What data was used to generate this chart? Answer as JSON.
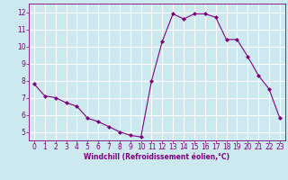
{
  "x": [
    0,
    1,
    2,
    3,
    4,
    5,
    6,
    7,
    8,
    9,
    10,
    11,
    12,
    13,
    14,
    15,
    16,
    17,
    18,
    19,
    20,
    21,
    22,
    23
  ],
  "y": [
    7.8,
    7.1,
    7.0,
    6.7,
    6.5,
    5.8,
    5.6,
    5.3,
    5.0,
    4.8,
    4.7,
    8.0,
    10.3,
    11.9,
    11.6,
    11.9,
    11.9,
    11.7,
    10.4,
    10.4,
    9.4,
    8.3,
    7.5,
    5.8
  ],
  "line_color": "#800080",
  "marker": "D",
  "marker_size": 2.0,
  "bg_color": "#cce9f0",
  "grid_color": "#ffffff",
  "xlabel": "Windchill (Refroidissement éolien,°C)",
  "xlabel_color": "#800080",
  "tick_color": "#800080",
  "xlim": [
    -0.5,
    23.5
  ],
  "ylim": [
    4.5,
    12.5
  ],
  "xticks": [
    0,
    1,
    2,
    3,
    4,
    5,
    6,
    7,
    8,
    9,
    10,
    11,
    12,
    13,
    14,
    15,
    16,
    17,
    18,
    19,
    20,
    21,
    22,
    23
  ],
  "yticks": [
    5,
    6,
    7,
    8,
    9,
    10,
    11,
    12
  ],
  "tick_fontsize": 5.5,
  "xlabel_fontsize": 5.5
}
